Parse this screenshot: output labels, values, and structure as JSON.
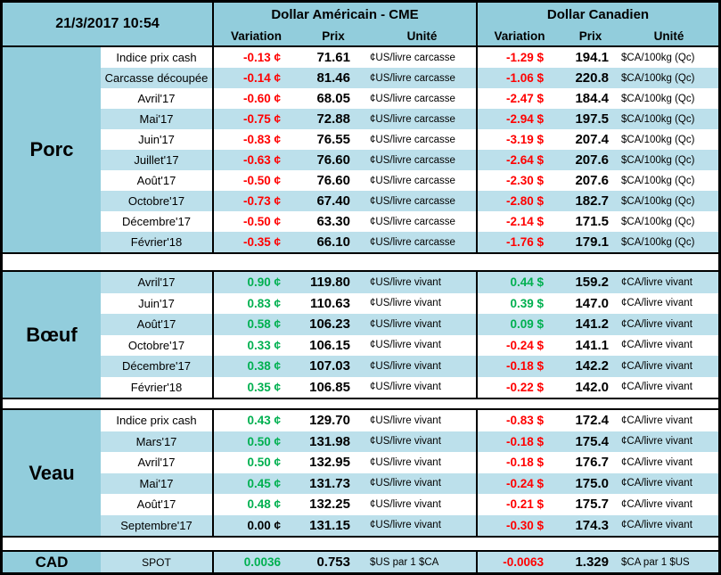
{
  "meta": {
    "timestamp": "21/3/2017 10:54"
  },
  "header": {
    "us_title": "Dollar Américain - CME",
    "ca_title": "Dollar Canadien",
    "col_variation": "Variation",
    "col_prix": "Prix",
    "col_unite": "Unité"
  },
  "colors": {
    "positive": "#00B050",
    "negative": "#FF0000",
    "neutral": "#000000",
    "header_blue": "#92CDDC",
    "stripe_blue": "#BCE0EB"
  },
  "sections": [
    {
      "key": "porc",
      "label": "Porc",
      "rows": [
        {
          "label": "Indice prix cash",
          "us_variation": "-0.13 ¢",
          "us_price": "71.61",
          "us_unit": "¢US/livre carcasse",
          "ca_variation": "-1.29 $",
          "ca_price": "194.1",
          "ca_unit": "$CA/100kg (Qc)"
        },
        {
          "label": "Carcasse découpée",
          "us_variation": "-0.14 ¢",
          "us_price": "81.46",
          "us_unit": "¢US/livre carcasse",
          "ca_variation": "-1.06 $",
          "ca_price": "220.8",
          "ca_unit": "$CA/100kg (Qc)"
        },
        {
          "label": "Avril'17",
          "us_variation": "-0.60 ¢",
          "us_price": "68.05",
          "us_unit": "¢US/livre carcasse",
          "ca_variation": "-2.47 $",
          "ca_price": "184.4",
          "ca_unit": "$CA/100kg (Qc)"
        },
        {
          "label": "Mai'17",
          "us_variation": "-0.75 ¢",
          "us_price": "72.88",
          "us_unit": "¢US/livre carcasse",
          "ca_variation": "-2.94 $",
          "ca_price": "197.5",
          "ca_unit": "$CA/100kg (Qc)"
        },
        {
          "label": "Juin'17",
          "us_variation": "-0.83 ¢",
          "us_price": "76.55",
          "us_unit": "¢US/livre carcasse",
          "ca_variation": "-3.19 $",
          "ca_price": "207.4",
          "ca_unit": "$CA/100kg (Qc)"
        },
        {
          "label": "Juillet'17",
          "us_variation": "-0.63 ¢",
          "us_price": "76.60",
          "us_unit": "¢US/livre carcasse",
          "ca_variation": "-2.64 $",
          "ca_price": "207.6",
          "ca_unit": "$CA/100kg (Qc)"
        },
        {
          "label": "Août'17",
          "us_variation": "-0.50 ¢",
          "us_price": "76.60",
          "us_unit": "¢US/livre carcasse",
          "ca_variation": "-2.30 $",
          "ca_price": "207.6",
          "ca_unit": "$CA/100kg (Qc)"
        },
        {
          "label": "Octobre'17",
          "us_variation": "-0.73 ¢",
          "us_price": "67.40",
          "us_unit": "¢US/livre carcasse",
          "ca_variation": "-2.80 $",
          "ca_price": "182.7",
          "ca_unit": "$CA/100kg (Qc)"
        },
        {
          "label": "Décembre'17",
          "us_variation": "-0.50 ¢",
          "us_price": "63.30",
          "us_unit": "¢US/livre carcasse",
          "ca_variation": "-2.14 $",
          "ca_price": "171.5",
          "ca_unit": "$CA/100kg (Qc)"
        },
        {
          "label": "Février'18",
          "us_variation": "-0.35 ¢",
          "us_price": "66.10",
          "us_unit": "¢US/livre carcasse",
          "ca_variation": "-1.76 $",
          "ca_price": "179.1",
          "ca_unit": "$CA/100kg (Qc)"
        }
      ]
    },
    {
      "key": "boeuf",
      "label": "Bœuf",
      "rows": [
        {
          "label": "Avril'17",
          "us_variation": "0.90 ¢",
          "us_price": "119.80",
          "us_unit": "¢US/livre vivant",
          "ca_variation": "0.44 $",
          "ca_price": "159.2",
          "ca_unit": "¢CA/livre vivant"
        },
        {
          "label": "Juin'17",
          "us_variation": "0.83 ¢",
          "us_price": "110.63",
          "us_unit": "¢US/livre vivant",
          "ca_variation": "0.39 $",
          "ca_price": "147.0",
          "ca_unit": "¢CA/livre vivant"
        },
        {
          "label": "Août'17",
          "us_variation": "0.58 ¢",
          "us_price": "106.23",
          "us_unit": "¢US/livre vivant",
          "ca_variation": "0.09 $",
          "ca_price": "141.2",
          "ca_unit": "¢CA/livre vivant"
        },
        {
          "label": "Octobre'17",
          "us_variation": "0.33 ¢",
          "us_price": "106.15",
          "us_unit": "¢US/livre vivant",
          "ca_variation": "-0.24 $",
          "ca_price": "141.1",
          "ca_unit": "¢CA/livre vivant"
        },
        {
          "label": "Décembre'17",
          "us_variation": "0.38 ¢",
          "us_price": "107.03",
          "us_unit": "¢US/livre vivant",
          "ca_variation": "-0.18 $",
          "ca_price": "142.2",
          "ca_unit": "¢CA/livre vivant"
        },
        {
          "label": "Février'18",
          "us_variation": "0.35 ¢",
          "us_price": "106.85",
          "us_unit": "¢US/livre vivant",
          "ca_variation": "-0.22 $",
          "ca_price": "142.0",
          "ca_unit": "¢CA/livre vivant"
        }
      ]
    },
    {
      "key": "veau",
      "label": "Veau",
      "rows": [
        {
          "label": "Indice prix cash",
          "us_variation": "0.43 ¢",
          "us_price": "129.70",
          "us_unit": "¢US/livre vivant",
          "ca_variation": "-0.83 $",
          "ca_price": "172.4",
          "ca_unit": "¢CA/livre vivant"
        },
        {
          "label": "Mars'17",
          "us_variation": "0.50 ¢",
          "us_price": "131.98",
          "us_unit": "¢US/livre vivant",
          "ca_variation": "-0.18 $",
          "ca_price": "175.4",
          "ca_unit": "¢CA/livre vivant"
        },
        {
          "label": "Avril'17",
          "us_variation": "0.50 ¢",
          "us_price": "132.95",
          "us_unit": "¢US/livre vivant",
          "ca_variation": "-0.18 $",
          "ca_price": "176.7",
          "ca_unit": "¢CA/livre vivant"
        },
        {
          "label": "Mai'17",
          "us_variation": "0.45 ¢",
          "us_price": "131.73",
          "us_unit": "¢US/livre vivant",
          "ca_variation": "-0.24 $",
          "ca_price": "175.0",
          "ca_unit": "¢CA/livre vivant"
        },
        {
          "label": "Août'17",
          "us_variation": "0.48 ¢",
          "us_price": "132.25",
          "us_unit": "¢US/livre vivant",
          "ca_variation": "-0.21 $",
          "ca_price": "175.7",
          "ca_unit": "¢CA/livre vivant"
        },
        {
          "label": "Septembre'17",
          "us_variation": "0.00 ¢",
          "us_price": "131.15",
          "us_unit": "¢US/livre vivant",
          "ca_variation": "-0.30 $",
          "ca_price": "174.3",
          "ca_unit": "¢CA/livre vivant"
        }
      ]
    },
    {
      "key": "cad",
      "label": "CAD",
      "rows": [
        {
          "label": "SPOT",
          "us_variation": "0.0036",
          "us_price": "0.753",
          "us_unit": "$US par 1 $CA",
          "ca_variation": "-0.0063",
          "ca_price": "1.329",
          "ca_unit": "$CA par 1 $US"
        }
      ]
    }
  ]
}
